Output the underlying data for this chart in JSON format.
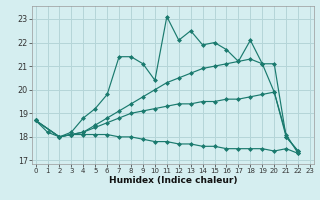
{
  "xlabel": "Humidex (Indice chaleur)",
  "xlim": [
    -0.3,
    23.3
  ],
  "ylim": [
    16.85,
    23.55
  ],
  "yticks": [
    17,
    18,
    19,
    20,
    21,
    22,
    23
  ],
  "xticks": [
    0,
    1,
    2,
    3,
    4,
    5,
    6,
    7,
    8,
    9,
    10,
    11,
    12,
    13,
    14,
    15,
    16,
    17,
    18,
    19,
    20,
    21,
    22,
    23
  ],
  "bg_color": "#d5eef0",
  "grid_color": "#b5d5d8",
  "line_color": "#1a7a6e",
  "lines": [
    {
      "x": [
        0,
        1,
        2,
        3,
        4,
        5,
        6,
        7,
        8,
        9,
        10,
        11,
        12,
        13,
        14,
        15,
        16,
        17,
        18,
        19,
        20,
        21,
        22
      ],
      "y": [
        18.7,
        18.2,
        18.0,
        18.2,
        18.8,
        19.2,
        19.8,
        21.4,
        21.4,
        21.1,
        20.4,
        23.1,
        22.1,
        22.5,
        21.9,
        22.0,
        21.7,
        21.2,
        22.1,
        21.1,
        19.9,
        18.1,
        17.3
      ]
    },
    {
      "x": [
        0,
        2,
        3,
        4,
        5,
        6,
        7,
        8,
        9,
        10,
        11,
        12,
        13,
        14,
        15,
        16,
        17,
        18,
        19,
        20,
        21,
        22
      ],
      "y": [
        18.7,
        18.0,
        18.1,
        18.2,
        18.5,
        18.8,
        19.1,
        19.4,
        19.7,
        20.0,
        20.3,
        20.5,
        20.7,
        20.9,
        21.0,
        21.1,
        21.2,
        21.3,
        21.1,
        21.1,
        18.0,
        17.4
      ]
    },
    {
      "x": [
        0,
        2,
        3,
        4,
        5,
        6,
        7,
        8,
        9,
        10,
        11,
        12,
        13,
        14,
        15,
        16,
        17,
        18,
        19,
        20,
        21,
        22
      ],
      "y": [
        18.7,
        18.0,
        18.1,
        18.2,
        18.4,
        18.6,
        18.8,
        19.0,
        19.1,
        19.2,
        19.3,
        19.4,
        19.4,
        19.5,
        19.5,
        19.6,
        19.6,
        19.7,
        19.8,
        19.9,
        18.0,
        17.4
      ]
    },
    {
      "x": [
        0,
        2,
        3,
        4,
        5,
        6,
        7,
        8,
        9,
        10,
        11,
        12,
        13,
        14,
        15,
        16,
        17,
        18,
        19,
        20,
        21,
        22
      ],
      "y": [
        18.7,
        18.0,
        18.1,
        18.1,
        18.1,
        18.1,
        18.0,
        18.0,
        17.9,
        17.8,
        17.8,
        17.7,
        17.7,
        17.6,
        17.6,
        17.5,
        17.5,
        17.5,
        17.5,
        17.4,
        17.5,
        17.3
      ]
    }
  ]
}
